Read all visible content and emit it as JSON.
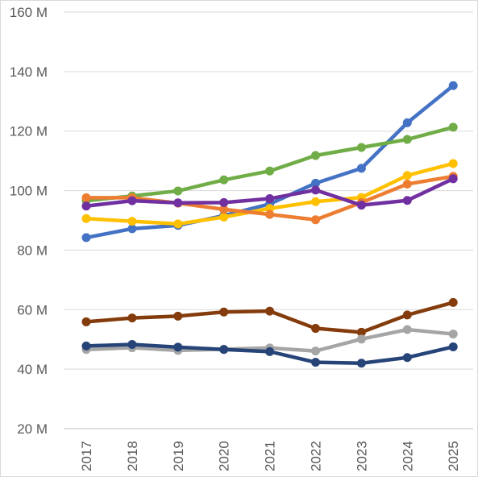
{
  "chart_data": {
    "type": "line",
    "title": "",
    "xlabel": "",
    "ylabel": "",
    "x": [
      "2017",
      "2018",
      "2019",
      "2020",
      "2021",
      "2022",
      "2023",
      "2024",
      "2025"
    ],
    "y_ticks": [
      "20 M",
      "40 M",
      "60 M",
      "80 M",
      "100 M",
      "120 M",
      "140 M",
      "160 M"
    ],
    "ylim": [
      20,
      160
    ],
    "grid": "horizontal",
    "legend": "none",
    "series": [
      {
        "color": "#4472C4",
        "values": [
          84.2,
          87.2,
          88.3,
          91.6,
          95.5,
          102.5,
          107.5,
          122.8,
          135.3
        ]
      },
      {
        "color": "#70AD47",
        "values": [
          96.6,
          98.2,
          99.9,
          103.6,
          106.6,
          111.8,
          114.5,
          117.2,
          121.3
        ]
      },
      {
        "color": "#FFC000",
        "values": [
          90.6,
          89.7,
          88.8,
          91.1,
          94.0,
          96.3,
          97.7,
          105.1,
          109.1
        ]
      },
      {
        "color": "#ED7D31",
        "values": [
          97.6,
          97.6,
          95.8,
          93.7,
          92.0,
          90.2,
          96.0,
          102.2,
          104.8
        ]
      },
      {
        "color": "#7030A0",
        "values": [
          94.8,
          96.6,
          95.9,
          96.0,
          97.3,
          100.2,
          95.1,
          96.7,
          104.0
        ]
      },
      {
        "color": "#843C0C",
        "values": [
          55.9,
          57.2,
          57.8,
          59.2,
          59.5,
          53.7,
          52.4,
          58.2,
          62.4
        ]
      },
      {
        "color": "#A5A5A5",
        "values": [
          46.6,
          47.2,
          46.3,
          46.7,
          47.1,
          46.1,
          50.1,
          53.3,
          51.8
        ]
      },
      {
        "color": "#264478",
        "values": [
          47.8,
          48.3,
          47.4,
          46.6,
          45.9,
          42.3,
          42.0,
          43.9,
          47.5
        ]
      }
    ]
  }
}
